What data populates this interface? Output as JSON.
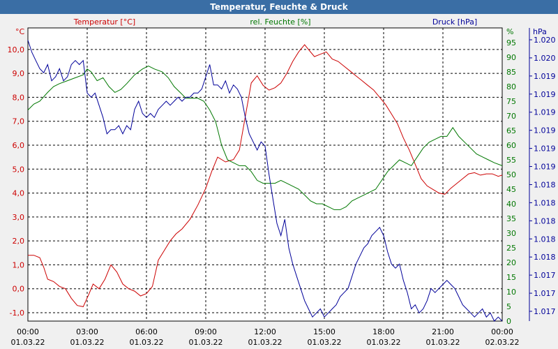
{
  "window": {
    "title": "Temperatur, Feuchte & Druck"
  },
  "colors": {
    "temperature": "#cc0000",
    "humidity": "#007700",
    "pressure": "#000099",
    "axis": "#000000",
    "grid": "#000000"
  },
  "chart_data": {
    "type": "line",
    "title": "Temperatur, Feuchte & Druck",
    "x_ticks": [
      {
        "time": "00:00",
        "date": "01.03.22"
      },
      {
        "time": "03:00",
        "date": "01.03.22"
      },
      {
        "time": "06:00",
        "date": "01.03.22"
      },
      {
        "time": "09:00",
        "date": "01.03.22"
      },
      {
        "time": "12:00",
        "date": "01.03.22"
      },
      {
        "time": "15:00",
        "date": "01.03.22"
      },
      {
        "time": "18:00",
        "date": "01.03.22"
      },
      {
        "time": "21:00",
        "date": "01.03.22"
      },
      {
        "time": "00:00",
        "date": "02.03.22"
      }
    ],
    "xlim": [
      0,
      24
    ],
    "axes": {
      "temperature": {
        "label": "Temperatur [°C]",
        "unit": "°C",
        "ylim": [
          -1.35,
          10.9
        ],
        "ticks": [
          "10,0",
          "9,0",
          "8,0",
          "7,0",
          "6,0",
          "5,0",
          "4,0",
          "3,0",
          "2,0",
          "1,0",
          "0,0",
          "-1,0"
        ]
      },
      "humidity": {
        "label": "rel. Feuchte [%]",
        "unit": "%",
        "ylim": [
          0,
          100
        ],
        "ticks": [
          "95",
          "90",
          "85",
          "80",
          "75",
          "70",
          "65",
          "60",
          "55",
          "50",
          "45",
          "40",
          "35",
          "30",
          "25",
          "20",
          "15",
          "10",
          "5",
          "0"
        ]
      },
      "pressure": {
        "label": "Druck [hPa]",
        "unit": "hPa",
        "ylim": [
          1016.8,
          1020.4
        ],
        "ticks": [
          "1.020",
          "1.020",
          "1.019",
          "1.019",
          "1.019",
          "1.019",
          "1.019",
          "1.019",
          "1.018",
          "1.018",
          "1.018",
          "1.018",
          "1.018",
          "1.017",
          "1.017",
          "1.017"
        ]
      }
    },
    "series": [
      {
        "name": "Temperatur",
        "axis": "temperature",
        "x": [
          0,
          0.3,
          0.6,
          0.8,
          1.0,
          1.3,
          1.6,
          1.9,
          2.2,
          2.5,
          2.8,
          3.1,
          3.3,
          3.6,
          3.9,
          4.2,
          4.5,
          4.8,
          5.1,
          5.4,
          5.7,
          6.0,
          6.3,
          6.6,
          6.9,
          7.2,
          7.5,
          7.8,
          8.2,
          8.6,
          9.0,
          9.3,
          9.6,
          10.0,
          10.4,
          10.7,
          11.0,
          11.3,
          11.6,
          11.9,
          12.2,
          12.5,
          12.8,
          13.1,
          13.4,
          13.7,
          14.0,
          14.2,
          14.5,
          14.8,
          15.1,
          15.4,
          15.7,
          16.0,
          16.3,
          16.6,
          16.9,
          17.2,
          17.5,
          17.8,
          18.1,
          18.4,
          18.7,
          19.0,
          19.3,
          19.6,
          19.9,
          20.2,
          20.5,
          20.8,
          21.1,
          21.4,
          21.7,
          22.0,
          22.3,
          22.6,
          22.9,
          23.2,
          23.5,
          23.8,
          24.0
        ],
        "y": [
          1.4,
          1.4,
          1.3,
          0.9,
          0.4,
          0.3,
          0.1,
          0.0,
          -0.4,
          -0.7,
          -0.75,
          -0.2,
          0.2,
          0.0,
          0.4,
          1.0,
          0.7,
          0.2,
          0.0,
          -0.1,
          -0.3,
          -0.2,
          0.1,
          1.2,
          1.6,
          2.0,
          2.3,
          2.5,
          2.9,
          3.5,
          4.2,
          4.9,
          5.5,
          5.3,
          5.4,
          5.8,
          7.2,
          8.6,
          8.9,
          8.5,
          8.3,
          8.4,
          8.6,
          9.0,
          9.5,
          9.9,
          10.2,
          10.0,
          9.7,
          9.8,
          9.9,
          9.6,
          9.5,
          9.3,
          9.1,
          8.9,
          8.7,
          8.5,
          8.3,
          8.0,
          7.7,
          7.3,
          6.9,
          6.3,
          5.8,
          5.2,
          4.6,
          4.3,
          4.15,
          4.0,
          3.95,
          4.2,
          4.4,
          4.6,
          4.8,
          4.85,
          4.75,
          4.8,
          4.8,
          4.7,
          4.75
        ]
      },
      {
        "name": "rel. Feuchte",
        "axis": "humidity",
        "x": [
          0,
          0.3,
          0.6,
          1.0,
          1.3,
          1.6,
          2.0,
          2.4,
          2.8,
          3.0,
          3.2,
          3.5,
          3.8,
          4.1,
          4.4,
          4.7,
          5.0,
          5.4,
          5.8,
          6.1,
          6.4,
          6.8,
          7.1,
          7.4,
          7.7,
          8.0,
          8.3,
          8.6,
          8.9,
          9.2,
          9.5,
          9.8,
          10.1,
          10.4,
          10.7,
          11.0,
          11.3,
          11.6,
          11.9,
          12.2,
          12.5,
          12.8,
          13.1,
          13.4,
          13.7,
          14.0,
          14.3,
          14.6,
          14.9,
          15.2,
          15.5,
          15.8,
          16.1,
          16.4,
          16.7,
          17.0,
          17.3,
          17.6,
          17.9,
          18.2,
          18.5,
          18.8,
          19.1,
          19.4,
          19.7,
          20.0,
          20.3,
          20.6,
          20.9,
          21.2,
          21.5,
          21.8,
          22.1,
          22.4,
          22.7,
          23.0,
          23.3,
          23.6,
          24.0
        ],
        "y": [
          72,
          74,
          75,
          78,
          80,
          81,
          82,
          83,
          84,
          86,
          85,
          82,
          83,
          80,
          78,
          79,
          81,
          84,
          86,
          87,
          86,
          85,
          83,
          80,
          78,
          76,
          76,
          76,
          75,
          72,
          68,
          60,
          55,
          54,
          53,
          53,
          51,
          48,
          47,
          47,
          47,
          48,
          47,
          46,
          45,
          43,
          41,
          40,
          40,
          39,
          38,
          38,
          39,
          41,
          42,
          43,
          44,
          45,
          48,
          51,
          53,
          55,
          54,
          53,
          56,
          59,
          61,
          62,
          63,
          63,
          66,
          63,
          61,
          59,
          57,
          56,
          55,
          54,
          53
        ]
      },
      {
        "name": "Druck",
        "axis": "pressure",
        "x": [
          0,
          0.2,
          0.4,
          0.6,
          0.8,
          1.0,
          1.2,
          1.4,
          1.6,
          1.8,
          2.0,
          2.2,
          2.4,
          2.6,
          2.8,
          3.0,
          3.2,
          3.4,
          3.6,
          3.8,
          4.0,
          4.2,
          4.4,
          4.6,
          4.8,
          5.0,
          5.2,
          5.4,
          5.6,
          5.8,
          6.0,
          6.2,
          6.4,
          6.6,
          6.8,
          7.0,
          7.2,
          7.4,
          7.6,
          7.8,
          8.0,
          8.2,
          8.4,
          8.6,
          8.8,
          9.0,
          9.2,
          9.4,
          9.6,
          9.8,
          10.0,
          10.2,
          10.4,
          10.6,
          10.8,
          11.0,
          11.2,
          11.4,
          11.6,
          11.8,
          12.0,
          12.2,
          12.4,
          12.6,
          12.8,
          13.0,
          13.2,
          13.4,
          13.6,
          13.8,
          14.0,
          14.2,
          14.4,
          14.6,
          14.8,
          15.0,
          15.2,
          15.4,
          15.6,
          15.8,
          16.0,
          16.2,
          16.4,
          16.6,
          16.8,
          17.0,
          17.2,
          17.4,
          17.6,
          17.8,
          18.0,
          18.2,
          18.4,
          18.6,
          18.8,
          19.0,
          19.2,
          19.4,
          19.6,
          19.8,
          20.0,
          20.2,
          20.4,
          20.6,
          20.8,
          21.0,
          21.2,
          21.4,
          21.6,
          21.8,
          22.0,
          22.2,
          22.4,
          22.6,
          22.8,
          23.0,
          23.2,
          23.4,
          23.6,
          23.8,
          24.0
        ],
        "y": [
          1020.25,
          1020.1,
          1020.0,
          1019.9,
          1019.85,
          1019.95,
          1019.75,
          1019.8,
          1019.9,
          1019.75,
          1019.8,
          1019.95,
          1020.0,
          1019.95,
          1020.0,
          1019.6,
          1019.55,
          1019.6,
          1019.45,
          1019.3,
          1019.1,
          1019.15,
          1019.15,
          1019.2,
          1019.1,
          1019.2,
          1019.15,
          1019.4,
          1019.5,
          1019.35,
          1019.3,
          1019.35,
          1019.3,
          1019.4,
          1019.45,
          1019.5,
          1019.45,
          1019.5,
          1019.55,
          1019.5,
          1019.55,
          1019.55,
          1019.6,
          1019.6,
          1019.65,
          1019.8,
          1019.95,
          1019.7,
          1019.7,
          1019.65,
          1019.75,
          1019.6,
          1019.7,
          1019.65,
          1019.55,
          1019.3,
          1019.1,
          1019.0,
          1018.9,
          1019.0,
          1018.95,
          1018.6,
          1018.3,
          1018.0,
          1017.85,
          1018.05,
          1017.7,
          1017.5,
          1017.35,
          1017.2,
          1017.05,
          1016.95,
          1016.85,
          1016.9,
          1016.95,
          1016.85,
          1016.9,
          1016.95,
          1017.0,
          1017.1,
          1017.15,
          1017.2,
          1017.35,
          1017.5,
          1017.6,
          1017.7,
          1017.75,
          1017.85,
          1017.9,
          1017.95,
          1017.85,
          1017.65,
          1017.5,
          1017.45,
          1017.5,
          1017.3,
          1017.15,
          1016.95,
          1017.0,
          1016.9,
          1016.95,
          1017.05,
          1017.2,
          1017.15,
          1017.2,
          1017.25,
          1017.3,
          1017.25,
          1017.2,
          1017.1,
          1017.0,
          1016.95,
          1016.9,
          1016.85,
          1016.9,
          1016.95,
          1016.85,
          1016.9,
          1016.8,
          1016.85,
          1016.8
        ]
      }
    ]
  }
}
